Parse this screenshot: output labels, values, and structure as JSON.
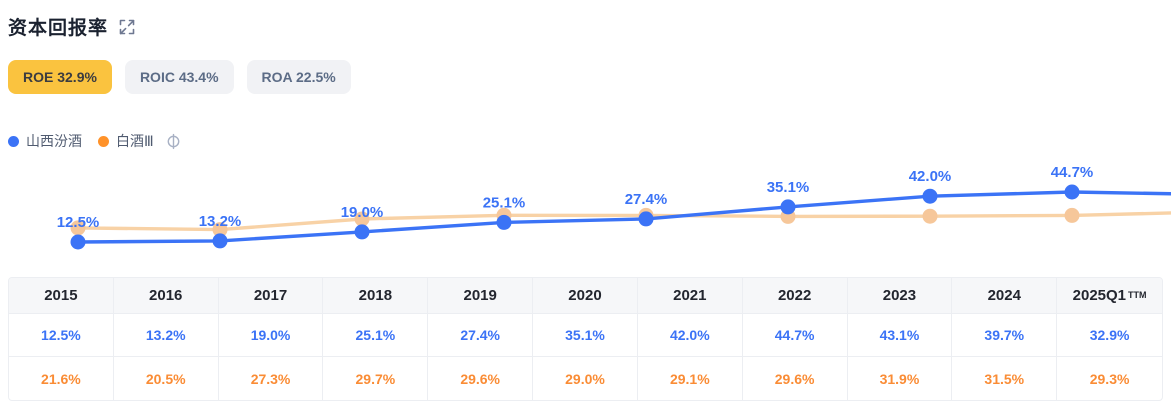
{
  "header": {
    "title": "资本回报率"
  },
  "tabs": {
    "items": [
      {
        "id": "roe",
        "label": "ROE 32.9%",
        "active": true
      },
      {
        "id": "roic",
        "label": "ROIC 43.4%",
        "active": false
      },
      {
        "id": "roa",
        "label": "ROA 22.5%",
        "active": false
      }
    ],
    "active_bg": "#fac33f",
    "inactive_bg": "#f1f2f5"
  },
  "legend": {
    "items": [
      {
        "label": "山西汾酒",
        "color": "#3b73f6"
      },
      {
        "label": "白酒Ⅲ",
        "color": "#ff9229"
      }
    ]
  },
  "chart_data": {
    "type": "line",
    "categories": [
      "2015",
      "2016",
      "2017",
      "2018",
      "2019",
      "2020",
      "2021",
      "2022",
      "2023",
      "2024",
      "2025Q1"
    ],
    "series": [
      {
        "name": "山西汾酒",
        "line_color": "#3b73f6",
        "dot_color": "#3b73f6",
        "label_color": "#3b73f6",
        "values": [
          12.5,
          13.2,
          19.0,
          25.1,
          27.4,
          35.1,
          42.0,
          44.7,
          43.1,
          39.7,
          32.9
        ],
        "labeled": true
      },
      {
        "name": "白酒Ⅲ",
        "line_color": "#f8d2a6",
        "dot_color": "#f6c79a",
        "values": [
          21.6,
          20.5,
          27.3,
          29.7,
          29.6,
          29.0,
          29.1,
          29.6,
          31.9,
          31.5,
          29.3
        ],
        "labeled": false
      }
    ],
    "label_format": "{v}%",
    "visible_points": 8,
    "grid": false,
    "axes_hidden": true
  },
  "table": {
    "columns": [
      {
        "label": "2015"
      },
      {
        "label": "2016"
      },
      {
        "label": "2017"
      },
      {
        "label": "2018"
      },
      {
        "label": "2019"
      },
      {
        "label": "2020"
      },
      {
        "label": "2021"
      },
      {
        "label": "2022"
      },
      {
        "label": "2023"
      },
      {
        "label": "2024"
      },
      {
        "label": "2025Q1",
        "sup": "TTM"
      }
    ],
    "rows": [
      {
        "series": "山西汾酒",
        "text_color": "#3b73f6",
        "values": [
          "12.5%",
          "13.2%",
          "19.0%",
          "25.1%",
          "27.4%",
          "35.1%",
          "42.0%",
          "44.7%",
          "43.1%",
          "39.7%",
          "32.9%"
        ]
      },
      {
        "series": "白酒Ⅲ",
        "text_color": "#fa8c35",
        "values": [
          "21.6%",
          "20.5%",
          "27.3%",
          "29.7%",
          "29.6%",
          "29.0%",
          "29.1%",
          "29.6%",
          "31.9%",
          "31.5%",
          "29.3%"
        ]
      }
    ]
  }
}
